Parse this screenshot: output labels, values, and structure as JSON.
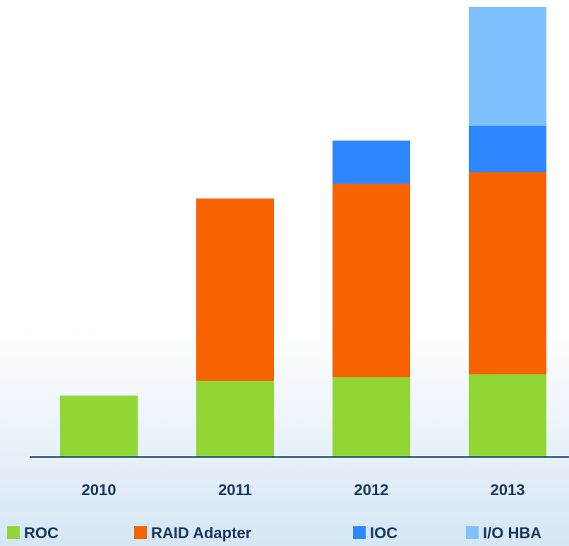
{
  "chart_data": {
    "type": "stacked-bar",
    "categories": [
      "2010",
      "2011",
      "2012",
      "2013"
    ],
    "series": [
      {
        "name": "ROC",
        "color": "#92d636",
        "values": [
          87,
          108,
          113,
          117
        ]
      },
      {
        "name": "RAID Adapter",
        "color": "#f76300",
        "values": [
          null,
          258,
          274,
          286
        ]
      },
      {
        "name": "IOC",
        "color": "#2e86ff",
        "values": [
          null,
          null,
          61,
          66
        ]
      },
      {
        "name": "I/O HBA",
        "color": "#7fc1ff",
        "values": [
          null,
          null,
          null,
          168
        ]
      }
    ]
  }
}
